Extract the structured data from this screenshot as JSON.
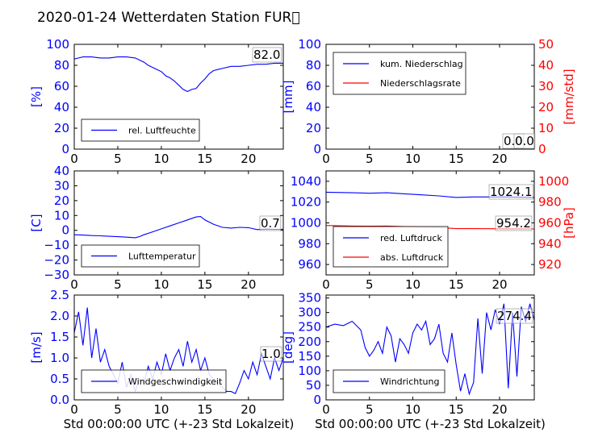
{
  "figure": {
    "title": "2020-01-24 Wetterdaten Station FUR\u0000",
    "colors": {
      "primary": "#0000ff",
      "secondary": "#ff0000",
      "axis": "#000000"
    }
  },
  "chart_data": [
    {
      "type": "line",
      "xlim": [
        0,
        24
      ],
      "ylim": [
        0,
        100
      ],
      "xticks": [
        "0",
        "5",
        "10",
        "15",
        "20"
      ],
      "yticks": [
        "0",
        "20",
        "40",
        "60",
        "80",
        "100"
      ],
      "ylabel": "[%]",
      "xlabel": "",
      "annotation": "82.0",
      "legend": {
        "position": "lower-left"
      },
      "series": [
        {
          "name": "rel. Luftfeuchte",
          "color": "#0000ff",
          "axis": "left",
          "x": [
            0,
            0.5,
            1,
            2,
            3,
            4,
            5,
            6,
            7,
            8,
            8.5,
            9,
            9.5,
            10,
            10.5,
            11,
            11.5,
            12,
            12.5,
            13,
            13.5,
            14,
            14.5,
            15,
            15.5,
            16,
            16.5,
            17,
            18,
            19,
            20,
            21,
            22,
            23,
            24
          ],
          "y": [
            86,
            87,
            88,
            88,
            87,
            87,
            88,
            88,
            87,
            83,
            80,
            78,
            76,
            74,
            70,
            68,
            65,
            61,
            57,
            55,
            57,
            58,
            63,
            67,
            72,
            75,
            76,
            77,
            79,
            79,
            80,
            81,
            81,
            82,
            82
          ]
        }
      ]
    },
    {
      "type": "line",
      "xlim": [
        0,
        24
      ],
      "ylim": [
        0,
        100
      ],
      "y2lim": [
        0,
        50
      ],
      "xticks": [
        "0",
        "5",
        "10",
        "15",
        "20"
      ],
      "yticks": [
        "0",
        "20",
        "40",
        "60",
        "80",
        "100"
      ],
      "y2ticks": [
        "0",
        "10",
        "20",
        "30",
        "40",
        "50"
      ],
      "ylabel": "[mm]",
      "y2label": "[mm/std]",
      "annotation": "0.0",
      "annotation2": "0.0",
      "legend": {
        "position": "upper-left"
      },
      "series": [
        {
          "name": "kum. Niederschlag",
          "color": "#0000ff",
          "axis": "left",
          "x": [
            0,
            24
          ],
          "y": [
            0,
            0
          ]
        },
        {
          "name": "Niederschlagsrate",
          "color": "#ff0000",
          "axis": "right",
          "x": [
            0,
            24
          ],
          "y": [
            0,
            0
          ]
        }
      ]
    },
    {
      "type": "line",
      "xlim": [
        0,
        24
      ],
      "ylim": [
        -30,
        40
      ],
      "xticks": [
        "0",
        "5",
        "10",
        "15",
        "20"
      ],
      "yticks": [
        "−30",
        "−20",
        "−10",
        "0",
        "10",
        "20",
        "30",
        "40"
      ],
      "ylabel": "[C]",
      "annotation": "0.7",
      "legend": {
        "position": "lower-left"
      },
      "series": [
        {
          "name": "Lufttemperatur",
          "color": "#0000ff",
          "axis": "left",
          "x": [
            0,
            1,
            2,
            3,
            4,
            5,
            6,
            7,
            7.5,
            8,
            9,
            10,
            11,
            12,
            13,
            14,
            14.5,
            15,
            16,
            17,
            18,
            19,
            20,
            21,
            22,
            23,
            24
          ],
          "y": [
            -3,
            -3.2,
            -3.5,
            -3.7,
            -4,
            -4.3,
            -4.6,
            -5,
            -4.2,
            -3,
            -1,
            1,
            3,
            5,
            7,
            9,
            9.3,
            7,
            4,
            2,
            1.5,
            2,
            1.8,
            0.5,
            0.8,
            0.6,
            0.7
          ]
        }
      ]
    },
    {
      "type": "line",
      "xlim": [
        0,
        24
      ],
      "ylim": [
        950,
        1050
      ],
      "y2lim": [
        910,
        1010
      ],
      "xticks": [
        "0",
        "5",
        "10",
        "15",
        "20"
      ],
      "yticks": [
        "960",
        "980",
        "1000",
        "1020",
        "1040"
      ],
      "y2ticks": [
        "920",
        "940",
        "960",
        "980",
        "1000"
      ],
      "ylabel": "",
      "y2label": "[hPa]",
      "annotation": "1024.1",
      "annotation2": "954.2",
      "legend": {
        "position": "lower-left"
      },
      "series": [
        {
          "name": "red. Luftdruck",
          "color": "#0000ff",
          "axis": "left",
          "x": [
            0,
            3,
            5,
            7,
            9,
            11,
            13,
            15,
            17,
            19,
            21,
            24
          ],
          "y": [
            1029.5,
            1029,
            1028.5,
            1029,
            1028,
            1027,
            1026,
            1024.5,
            1025,
            1025,
            1025,
            1024.5
          ]
        },
        {
          "name": "abs. Luftdruck",
          "color": "#ff0000",
          "axis": "right",
          "x": [
            0,
            3,
            5,
            7,
            9,
            11,
            13,
            15,
            17,
            19,
            21,
            24
          ],
          "y": [
            957.5,
            957,
            956.8,
            957,
            956.5,
            956,
            955.5,
            954.5,
            954.5,
            954.4,
            954.3,
            954.2
          ]
        }
      ]
    },
    {
      "type": "line",
      "xlim": [
        0,
        24
      ],
      "ylim": [
        0,
        2.5
      ],
      "xticks": [
        "0",
        "5",
        "10",
        "15",
        "20"
      ],
      "yticks": [
        "0.0",
        "0.5",
        "1.0",
        "1.5",
        "2.0",
        "2.5"
      ],
      "ylabel": "[m/s]",
      "xlabel": "Std 00:00:00 UTC (+-23 Std Lokalzeit)",
      "annotation": "1.0",
      "legend": {
        "position": "lower-left"
      },
      "series": [
        {
          "name": "Windgeschwindigkeit",
          "color": "#0000ff",
          "axis": "left",
          "x": [
            0,
            0.5,
            1,
            1.5,
            2,
            2.5,
            3,
            3.5,
            4,
            4.5,
            5,
            5.5,
            6,
            6.5,
            7,
            7.5,
            8,
            8.5,
            9,
            9.5,
            10,
            10.5,
            11,
            11.5,
            12,
            12.5,
            13,
            13.5,
            14,
            14.5,
            15,
            15.5,
            16,
            16.5,
            17,
            17.5,
            18,
            18.5,
            19,
            19.5,
            20,
            20.5,
            21,
            21.5,
            22,
            22.5,
            23,
            23.5,
            24
          ],
          "y": [
            1.6,
            2.1,
            1.3,
            2.2,
            1.0,
            1.7,
            0.9,
            1.2,
            0.8,
            0.6,
            0.4,
            0.9,
            0.3,
            0.6,
            0.2,
            0.5,
            0.4,
            0.8,
            0.5,
            0.9,
            0.6,
            1.1,
            0.7,
            1.0,
            1.2,
            0.8,
            1.4,
            0.9,
            1.2,
            0.7,
            1.0,
            0.6,
            0.5,
            0.4,
            0.3,
            0.2,
            0.2,
            0.15,
            0.4,
            0.7,
            0.5,
            0.9,
            0.6,
            1.1,
            0.8,
            0.5,
            1.0,
            0.7,
            1.0
          ]
        }
      ]
    },
    {
      "type": "line",
      "xlim": [
        0,
        24
      ],
      "ylim": [
        0,
        360
      ],
      "xticks": [
        "0",
        "5",
        "10",
        "15",
        "20"
      ],
      "yticks": [
        "0",
        "50",
        "100",
        "150",
        "200",
        "250",
        "300",
        "350"
      ],
      "ylabel": "[deg]",
      "xlabel": "Std 00:00:00 UTC (+-23 Std Lokalzeit)",
      "annotation": "274.4",
      "legend": {
        "position": "lower-left"
      },
      "series": [
        {
          "name": "Windrichtung",
          "color": "#0000ff",
          "axis": "left",
          "x": [
            0,
            1,
            2,
            3,
            4,
            4.5,
            5,
            5.5,
            6,
            6.5,
            7,
            7.5,
            8,
            8.5,
            9,
            9.5,
            10,
            10.5,
            11,
            11.5,
            12,
            12.5,
            13,
            13.5,
            14,
            14.5,
            15,
            15.5,
            16,
            16.5,
            17,
            17.5,
            18,
            18.5,
            19,
            19.5,
            20,
            20.5,
            21,
            21.5,
            22,
            22.5,
            23,
            23.5,
            24
          ],
          "y": [
            250,
            260,
            255,
            270,
            240,
            180,
            150,
            170,
            200,
            160,
            250,
            220,
            130,
            210,
            190,
            160,
            230,
            260,
            240,
            270,
            190,
            210,
            260,
            160,
            130,
            230,
            120,
            30,
            90,
            20,
            60,
            280,
            90,
            300,
            240,
            310,
            260,
            330,
            40,
            300,
            80,
            320,
            270,
            330,
            274
          ]
        }
      ]
    }
  ]
}
